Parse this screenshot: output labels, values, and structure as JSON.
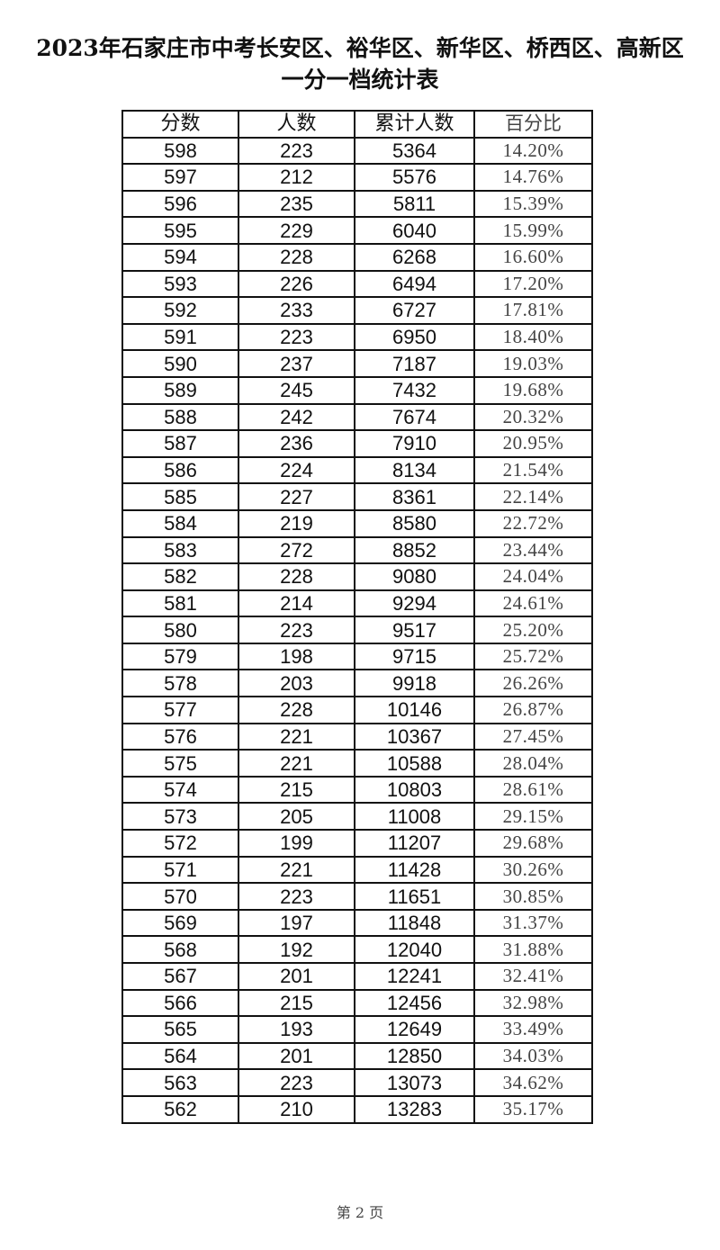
{
  "title": {
    "line1": "2023年石家庄市中考长安区、裕华区、新华区、桥西区、高新区",
    "line2": "一分一档统计表"
  },
  "table": {
    "headers": [
      "分数",
      "人数",
      "累计人数",
      "百分比"
    ],
    "rows": [
      [
        "598",
        "223",
        "5364",
        "14.20%"
      ],
      [
        "597",
        "212",
        "5576",
        "14.76%"
      ],
      [
        "596",
        "235",
        "5811",
        "15.39%"
      ],
      [
        "595",
        "229",
        "6040",
        "15.99%"
      ],
      [
        "594",
        "228",
        "6268",
        "16.60%"
      ],
      [
        "593",
        "226",
        "6494",
        "17.20%"
      ],
      [
        "592",
        "233",
        "6727",
        "17.81%"
      ],
      [
        "591",
        "223",
        "6950",
        "18.40%"
      ],
      [
        "590",
        "237",
        "7187",
        "19.03%"
      ],
      [
        "589",
        "245",
        "7432",
        "19.68%"
      ],
      [
        "588",
        "242",
        "7674",
        "20.32%"
      ],
      [
        "587",
        "236",
        "7910",
        "20.95%"
      ],
      [
        "586",
        "224",
        "8134",
        "21.54%"
      ],
      [
        "585",
        "227",
        "8361",
        "22.14%"
      ],
      [
        "584",
        "219",
        "8580",
        "22.72%"
      ],
      [
        "583",
        "272",
        "8852",
        "23.44%"
      ],
      [
        "582",
        "228",
        "9080",
        "24.04%"
      ],
      [
        "581",
        "214",
        "9294",
        "24.61%"
      ],
      [
        "580",
        "223",
        "9517",
        "25.20%"
      ],
      [
        "579",
        "198",
        "9715",
        "25.72%"
      ],
      [
        "578",
        "203",
        "9918",
        "26.26%"
      ],
      [
        "577",
        "228",
        "10146",
        "26.87%"
      ],
      [
        "576",
        "221",
        "10367",
        "27.45%"
      ],
      [
        "575",
        "221",
        "10588",
        "28.04%"
      ],
      [
        "574",
        "215",
        "10803",
        "28.61%"
      ],
      [
        "573",
        "205",
        "11008",
        "29.15%"
      ],
      [
        "572",
        "199",
        "11207",
        "29.68%"
      ],
      [
        "571",
        "221",
        "11428",
        "30.26%"
      ],
      [
        "570",
        "223",
        "11651",
        "30.85%"
      ],
      [
        "569",
        "197",
        "11848",
        "31.37%"
      ],
      [
        "568",
        "192",
        "12040",
        "31.88%"
      ],
      [
        "567",
        "201",
        "12241",
        "32.41%"
      ],
      [
        "566",
        "215",
        "12456",
        "32.98%"
      ],
      [
        "565",
        "193",
        "12649",
        "33.49%"
      ],
      [
        "564",
        "201",
        "12850",
        "34.03%"
      ],
      [
        "563",
        "223",
        "13073",
        "34.62%"
      ],
      [
        "562",
        "210",
        "13283",
        "35.17%"
      ]
    ]
  },
  "footer": "第 2 页"
}
